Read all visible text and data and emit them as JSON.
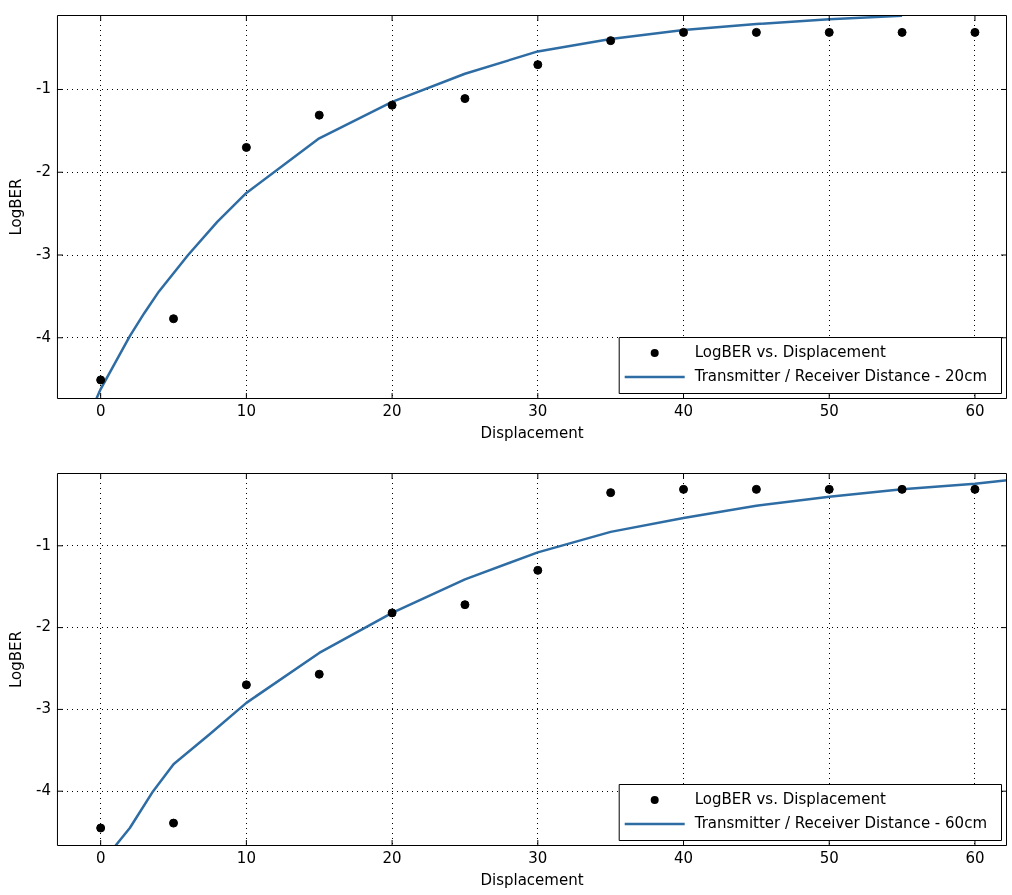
{
  "chart_data": [
    {
      "type": "scatter",
      "xlabel": "Displacement",
      "ylabel": "LogBER",
      "xlim": [
        -3,
        62.2
      ],
      "xticks": [
        0,
        10,
        20,
        30,
        40,
        50,
        60
      ],
      "ylim": [
        -4.74,
        -0.1
      ],
      "yticks": [
        -4,
        -3,
        -2,
        -1
      ],
      "grid": true,
      "legend": "bottom right",
      "series": [
        {
          "name": "LogBER vs. Displacement",
          "type": "scatter",
          "marker": "circle",
          "color": "#000000",
          "x": [
            0,
            5,
            10,
            15,
            20,
            25,
            30,
            35,
            40,
            45,
            50,
            55,
            60
          ],
          "values": [
            -4.51,
            -3.77,
            -1.7,
            -1.31,
            -1.19,
            -1.11,
            -0.7,
            -0.41,
            -0.31,
            -0.31,
            -0.31,
            -0.31,
            -0.31
          ]
        },
        {
          "name": "Transmitter / Receiver Distance - 20cm",
          "type": "line",
          "marker": "none",
          "color": "#2e6ca4",
          "x": [
            -0.3,
            0,
            1,
            2,
            3,
            4,
            6,
            8,
            10,
            15,
            20,
            25,
            30,
            35,
            40,
            45,
            50,
            55
          ],
          "values": [
            -4.74,
            -4.62,
            -4.3,
            -3.98,
            -3.7,
            -3.44,
            -3.0,
            -2.6,
            -2.25,
            -1.59,
            -1.15,
            -0.81,
            -0.54,
            -0.39,
            -0.28,
            -0.21,
            -0.15,
            -0.11
          ]
        }
      ]
    },
    {
      "type": "scatter",
      "xlabel": "Displacement",
      "ylabel": "LogBER",
      "xlim": [
        -3,
        62.2
      ],
      "xticks": [
        0,
        10,
        20,
        30,
        40,
        50,
        60
      ],
      "ylim": [
        -4.67,
        -0.11
      ],
      "yticks": [
        -4,
        -3,
        -2,
        -1
      ],
      "grid": true,
      "legend": "bottom right",
      "series": [
        {
          "name": "LogBER vs. Displacement",
          "type": "scatter",
          "marker": "circle",
          "color": "#000000",
          "x": [
            0,
            5,
            10,
            15,
            20,
            25,
            30,
            35,
            40,
            45,
            50,
            55,
            60
          ],
          "values": [
            -4.45,
            -4.39,
            -2.7,
            -2.57,
            -1.82,
            -1.72,
            -1.3,
            -0.35,
            -0.31,
            -0.31,
            -0.31,
            -0.31,
            -0.31
          ]
        },
        {
          "name": "Transmitter / Receiver Distance - 60cm",
          "type": "line",
          "marker": "none",
          "color": "#2e6ca4",
          "x": [
            1,
            2,
            3.6,
            5,
            7.5,
            10,
            15,
            20,
            25,
            30,
            35,
            40,
            45,
            50,
            55,
            60,
            62.2
          ],
          "values": [
            -4.67,
            -4.45,
            -4.0,
            -3.67,
            -3.3,
            -2.92,
            -2.31,
            -1.82,
            -1.41,
            -1.08,
            -0.83,
            -0.66,
            -0.51,
            -0.4,
            -0.31,
            -0.24,
            -0.2
          ]
        }
      ]
    }
  ]
}
